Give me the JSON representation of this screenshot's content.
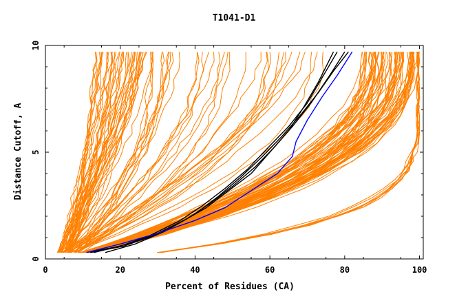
{
  "chart_data": {
    "type": "line",
    "title": "T1041-D1",
    "xlabel": "Percent of Residues (CA)",
    "ylabel": "Distance Cutoff, A",
    "xlim": [
      0,
      101
    ],
    "ylim": [
      0,
      10
    ],
    "x_ticks": [
      "0",
      "20",
      "40",
      "60",
      "80",
      "100"
    ],
    "y_ticks": [
      "0",
      "5",
      "10"
    ],
    "grid": false,
    "legend": "none",
    "colors": {
      "bundle": "#ff8000",
      "highlight": "#0000ff",
      "black": "#000000"
    },
    "series_groups": [
      {
        "description": "steep left bundle",
        "color": "#ff8000",
        "count": 40,
        "start_range": [
          3,
          7
        ],
        "end_range": [
          13,
          29
        ],
        "exponent_range": [
          1.1,
          1.6
        ]
      },
      {
        "description": "middle bundle",
        "color": "#ff8000",
        "count": 34,
        "start_range": [
          4,
          10
        ],
        "end_range": [
          28,
          76
        ],
        "exponent_range": [
          1.4,
          2.4
        ]
      },
      {
        "description": "dense lower-right bundle",
        "color": "#ff8000",
        "count": 70,
        "start_range": [
          9,
          13
        ],
        "end_range": [
          84,
          100
        ],
        "exponent_range": [
          2.0,
          2.9
        ]
      },
      {
        "description": "bottom flat bundle",
        "color": "#ff8000",
        "count": 8,
        "start_range": [
          29,
          31
        ],
        "end_range": [
          99.5,
          100
        ],
        "exponent_range": [
          5.0,
          6.0
        ]
      }
    ],
    "series": [
      {
        "color": "#000000",
        "x": [
          11,
          20,
          28,
          36,
          42,
          48,
          54,
          60,
          65,
          70,
          74,
          78
        ],
        "y": [
          0.3,
          0.6,
          1.1,
          1.8,
          2.5,
          3.3,
          4.2,
          5.3,
          6.2,
          7.3,
          8.5,
          9.7
        ]
      },
      {
        "color": "#000000",
        "x": [
          13,
          22,
          30,
          38,
          44,
          50,
          56,
          61,
          66,
          71,
          76,
          80
        ],
        "y": [
          0.3,
          0.7,
          1.2,
          1.9,
          2.6,
          3.4,
          4.3,
          5.2,
          6.2,
          7.3,
          8.6,
          9.7
        ]
      },
      {
        "color": "#000000",
        "x": [
          12,
          21,
          29,
          37,
          43,
          49,
          55,
          60,
          65,
          69,
          73,
          77
        ],
        "y": [
          0.3,
          0.6,
          1.1,
          1.8,
          2.4,
          3.2,
          4.0,
          5.0,
          6.0,
          7.1,
          8.3,
          9.7
        ]
      },
      {
        "color": "#000000",
        "x": [
          16,
          24,
          32,
          40,
          46,
          52,
          58,
          63,
          68,
          73,
          77,
          81
        ],
        "y": [
          0.3,
          0.7,
          1.3,
          2.1,
          2.9,
          3.8,
          4.8,
          5.7,
          6.7,
          7.8,
          8.8,
          9.7
        ]
      },
      {
        "color": "#0000ff",
        "x": [
          11,
          20,
          30,
          40,
          48,
          55,
          62,
          66,
          67,
          70,
          74,
          78,
          82
        ],
        "y": [
          0.3,
          0.7,
          1.2,
          1.8,
          2.4,
          3.2,
          4.0,
          4.8,
          5.5,
          6.5,
          7.6,
          8.6,
          9.7
        ]
      }
    ]
  }
}
